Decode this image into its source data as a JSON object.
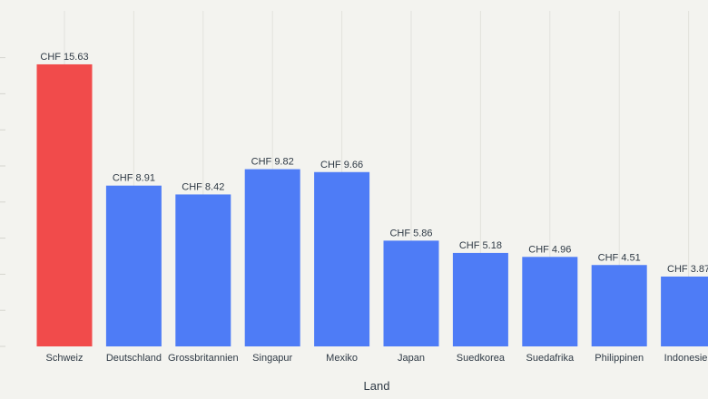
{
  "chart_data": {
    "type": "bar",
    "xlabel": "Land",
    "ylabel": "",
    "ylim": [
      0,
      16
    ],
    "grid": "vertical",
    "value_prefix": "CHF ",
    "categories": [
      "Schweiz",
      "Deutschland",
      "Grossbritannien",
      "Singapur",
      "Mexiko",
      "Japan",
      "Suedkorea",
      "Suedafrika",
      "Philippinen",
      "Indonesien"
    ],
    "values": [
      15.63,
      8.91,
      8.42,
      9.82,
      9.66,
      5.86,
      5.18,
      4.96,
      4.51,
      3.87
    ],
    "labels": [
      "CHF 15.63",
      "CHF 8.91",
      "CHF 8.42",
      "CHF 9.82",
      "CHF 9.66",
      "CHF 5.86",
      "CHF 5.18",
      "CHF 4.96",
      "CHF 4.51",
      "CHF 3.87"
    ],
    "colors": [
      "#f14b4b",
      "#4e7cf6",
      "#4e7cf6",
      "#4e7cf6",
      "#4e7cf6",
      "#4e7cf6",
      "#4e7cf6",
      "#4e7cf6",
      "#4e7cf6",
      "#4e7cf6"
    ]
  }
}
